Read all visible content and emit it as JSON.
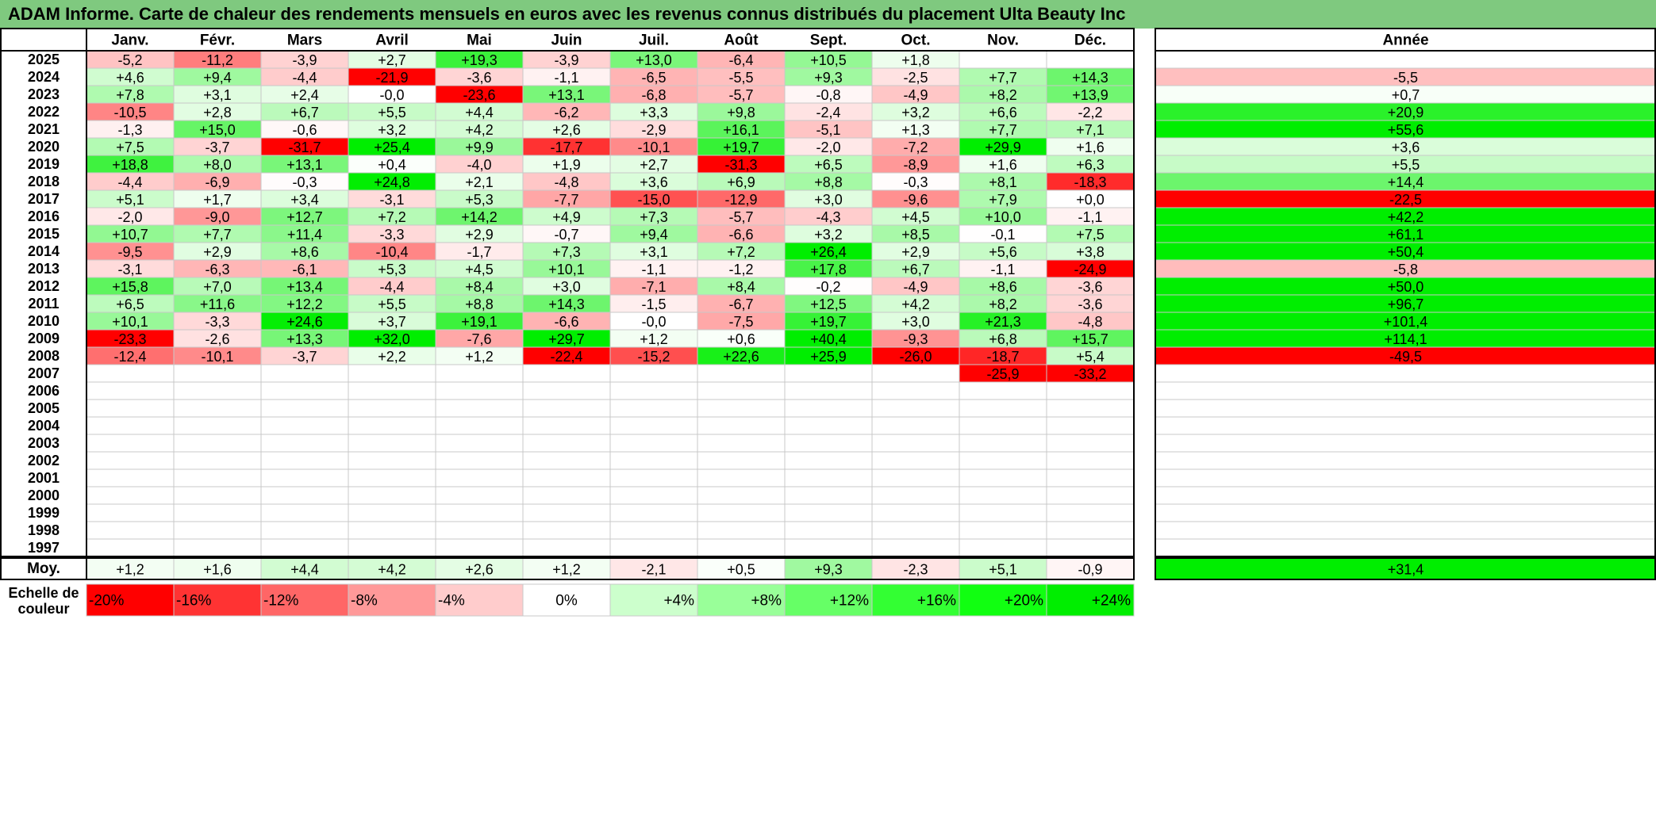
{
  "title": "ADAM Informe. Carte de chaleur des rendements mensuels en euros avec les revenus connus distribués du placement Ulta Beauty Inc",
  "chart_data": {
    "type": "heatmap",
    "months": [
      "Janv.",
      "Févr.",
      "Mars",
      "Avril",
      "Mai",
      "Juin",
      "Juil.",
      "Août",
      "Sept.",
      "Oct.",
      "Nov.",
      "Déc."
    ],
    "year_header": "Année",
    "average_label": "Moy.",
    "scale_label": "Echelle de couleur",
    "rows": [
      {
        "year": "2025",
        "values": [
          "-5,2",
          "-11,2",
          "-3,9",
          "+2,7",
          "+19,3",
          "-3,9",
          "+13,0",
          "-6,4",
          "+10,5",
          "+1,8",
          "",
          ""
        ],
        "annual": ""
      },
      {
        "year": "2024",
        "values": [
          "+4,6",
          "+9,4",
          "-4,4",
          "-21,9",
          "-3,6",
          "-1,1",
          "-6,5",
          "-5,5",
          "+9,3",
          "-2,5",
          "+7,7",
          "+14,3"
        ],
        "annual": "-5,5"
      },
      {
        "year": "2023",
        "values": [
          "+7,8",
          "+3,1",
          "+2,4",
          "-0,0",
          "-23,6",
          "+13,1",
          "-6,8",
          "-5,7",
          "-0,8",
          "-4,9",
          "+8,2",
          "+13,9"
        ],
        "annual": "+0,7"
      },
      {
        "year": "2022",
        "values": [
          "-10,5",
          "+2,8",
          "+6,7",
          "+5,5",
          "+4,4",
          "-6,2",
          "+3,3",
          "+9,8",
          "-2,4",
          "+3,2",
          "+6,6",
          "-2,2"
        ],
        "annual": "+20,9"
      },
      {
        "year": "2021",
        "values": [
          "-1,3",
          "+15,0",
          "-0,6",
          "+3,2",
          "+4,2",
          "+2,6",
          "-2,9",
          "+16,1",
          "-5,1",
          "+1,3",
          "+7,7",
          "+7,1"
        ],
        "annual": "+55,6"
      },
      {
        "year": "2020",
        "values": [
          "+7,5",
          "-3,7",
          "-31,7",
          "+25,4",
          "+9,9",
          "-17,7",
          "-10,1",
          "+19,7",
          "-2,0",
          "-7,2",
          "+29,9",
          "+1,6"
        ],
        "annual": "+3,6"
      },
      {
        "year": "2019",
        "values": [
          "+18,8",
          "+8,0",
          "+13,1",
          "+0,4",
          "-4,0",
          "+1,9",
          "+2,7",
          "-31,3",
          "+6,5",
          "-8,9",
          "+1,6",
          "+6,3"
        ],
        "annual": "+5,5"
      },
      {
        "year": "2018",
        "values": [
          "-4,4",
          "-6,9",
          "-0,3",
          "+24,8",
          "+2,1",
          "-4,8",
          "+3,6",
          "+6,9",
          "+8,8",
          "-0,3",
          "+8,1",
          "-18,3"
        ],
        "annual": "+14,4"
      },
      {
        "year": "2017",
        "values": [
          "+5,1",
          "+1,7",
          "+3,4",
          "-3,1",
          "+5,3",
          "-7,7",
          "-15,0",
          "-12,9",
          "+3,0",
          "-9,6",
          "+7,9",
          "+0,0"
        ],
        "annual": "-22,5"
      },
      {
        "year": "2016",
        "values": [
          "-2,0",
          "-9,0",
          "+12,7",
          "+7,2",
          "+14,2",
          "+4,9",
          "+7,3",
          "-5,7",
          "-4,3",
          "+4,5",
          "+10,0",
          "-1,1"
        ],
        "annual": "+42,2"
      },
      {
        "year": "2015",
        "values": [
          "+10,7",
          "+7,7",
          "+11,4",
          "-3,3",
          "+2,9",
          "-0,7",
          "+9,4",
          "-6,6",
          "+3,2",
          "+8,5",
          "-0,1",
          "+7,5"
        ],
        "annual": "+61,1"
      },
      {
        "year": "2014",
        "values": [
          "-9,5",
          "+2,9",
          "+8,6",
          "-10,4",
          "-1,7",
          "+7,3",
          "+3,1",
          "+7,2",
          "+26,4",
          "+2,9",
          "+5,6",
          "+3,8"
        ],
        "annual": "+50,4"
      },
      {
        "year": "2013",
        "values": [
          "-3,1",
          "-6,3",
          "-6,1",
          "+5,3",
          "+4,5",
          "+10,1",
          "-1,1",
          "-1,2",
          "+17,8",
          "+6,7",
          "-1,1",
          "-24,9"
        ],
        "annual": "-5,8"
      },
      {
        "year": "2012",
        "values": [
          "+15,8",
          "+7,0",
          "+13,4",
          "-4,4",
          "+8,4",
          "+3,0",
          "-7,1",
          "+8,4",
          "-0,2",
          "-4,9",
          "+8,6",
          "-3,6"
        ],
        "annual": "+50,0"
      },
      {
        "year": "2011",
        "values": [
          "+6,5",
          "+11,6",
          "+12,2",
          "+5,5",
          "+8,8",
          "+14,3",
          "-1,5",
          "-6,7",
          "+12,5",
          "+4,2",
          "+8,2",
          "-3,6"
        ],
        "annual": "+96,7"
      },
      {
        "year": "2010",
        "values": [
          "+10,1",
          "-3,3",
          "+24,6",
          "+3,7",
          "+19,1",
          "-6,6",
          "-0,0",
          "-7,5",
          "+19,7",
          "+3,0",
          "+21,3",
          "-4,8"
        ],
        "annual": "+101,4"
      },
      {
        "year": "2009",
        "values": [
          "-23,3",
          "-2,6",
          "+13,3",
          "+32,0",
          "-7,6",
          "+29,7",
          "+1,2",
          "+0,6",
          "+40,4",
          "-9,3",
          "+6,8",
          "+15,7"
        ],
        "annual": "+114,1"
      },
      {
        "year": "2008",
        "values": [
          "-12,4",
          "-10,1",
          "-3,7",
          "+2,2",
          "+1,2",
          "-22,4",
          "-15,2",
          "+22,6",
          "+25,9",
          "-26,0",
          "-18,7",
          "+5,4"
        ],
        "annual": "-49,5"
      },
      {
        "year": "2007",
        "values": [
          "",
          "",
          "",
          "",
          "",
          "",
          "",
          "",
          "",
          "",
          "-25,9",
          "-33,2"
        ],
        "annual": ""
      },
      {
        "year": "2006",
        "values": [
          "",
          "",
          "",
          "",
          "",
          "",
          "",
          "",
          "",
          "",
          "",
          ""
        ],
        "annual": ""
      },
      {
        "year": "2005",
        "values": [
          "",
          "",
          "",
          "",
          "",
          "",
          "",
          "",
          "",
          "",
          "",
          ""
        ],
        "annual": ""
      },
      {
        "year": "2004",
        "values": [
          "",
          "",
          "",
          "",
          "",
          "",
          "",
          "",
          "",
          "",
          "",
          ""
        ],
        "annual": ""
      },
      {
        "year": "2003",
        "values": [
          "",
          "",
          "",
          "",
          "",
          "",
          "",
          "",
          "",
          "",
          "",
          ""
        ],
        "annual": ""
      },
      {
        "year": "2002",
        "values": [
          "",
          "",
          "",
          "",
          "",
          "",
          "",
          "",
          "",
          "",
          "",
          ""
        ],
        "annual": ""
      },
      {
        "year": "2001",
        "values": [
          "",
          "",
          "",
          "",
          "",
          "",
          "",
          "",
          "",
          "",
          "",
          ""
        ],
        "annual": ""
      },
      {
        "year": "2000",
        "values": [
          "",
          "",
          "",
          "",
          "",
          "",
          "",
          "",
          "",
          "",
          "",
          ""
        ],
        "annual": ""
      },
      {
        "year": "1999",
        "values": [
          "",
          "",
          "",
          "",
          "",
          "",
          "",
          "",
          "",
          "",
          "",
          ""
        ],
        "annual": ""
      },
      {
        "year": "1998",
        "values": [
          "",
          "",
          "",
          "",
          "",
          "",
          "",
          "",
          "",
          "",
          "",
          ""
        ],
        "annual": ""
      },
      {
        "year": "1997",
        "values": [
          "",
          "",
          "",
          "",
          "",
          "",
          "",
          "",
          "",
          "",
          "",
          ""
        ],
        "annual": ""
      }
    ],
    "averages": [
      "+1,2",
      "+1,6",
      "+4,4",
      "+4,2",
      "+2,6",
      "+1,2",
      "-2,1",
      "+0,5",
      "+9,3",
      "-2,3",
      "+5,1",
      "-0,9"
    ],
    "average_annual": "+31,4",
    "scale": [
      "-20%",
      "-16%",
      "-12%",
      "-8%",
      "-4%",
      "0%",
      "+4%",
      "+8%",
      "+12%",
      "+16%",
      "+20%",
      "+24%"
    ],
    "scale_colors": [
      "#ff0000",
      "#ff3333",
      "#ff6666",
      "#ff9999",
      "#ffcccc",
      "#ffffff",
      "#ccffcc",
      "#99ff99",
      "#66ff66",
      "#33ff33",
      "#11ff11",
      "#00ee00"
    ],
    "colors": {
      "negative_max": "#ff0000",
      "zero": "#ffffff",
      "positive_max": "#00ee00",
      "title_bg": "#7fc97f"
    }
  }
}
